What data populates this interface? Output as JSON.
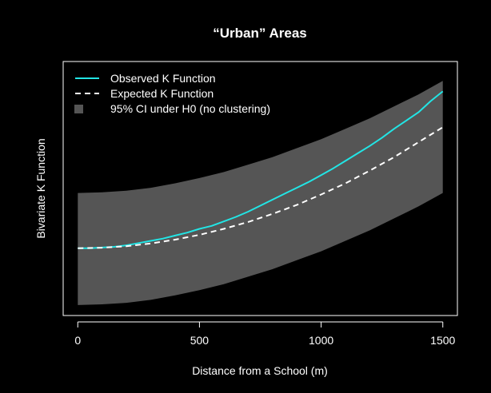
{
  "chart_data": {
    "type": "line",
    "title": "“Urban” Areas",
    "xlabel": "Distance from a School (m)",
    "ylabel": "Bivariate K Function",
    "xlim": [
      -60,
      1560
    ],
    "xticks": [
      0,
      500,
      1000,
      1500
    ],
    "ylim": [
      -0.45,
      1.25
    ],
    "show_y_ticks": false,
    "grid": false,
    "legend_position": "top-left",
    "colors": {
      "background": "#000000",
      "foreground": "#ffffff",
      "observed": "#22e5e5",
      "expected": "#ffffff",
      "ci_band": "#555555"
    },
    "ci_band": {
      "name": "95% CI under H0 (no clustering)",
      "x": [
        0,
        100,
        200,
        300,
        400,
        500,
        600,
        700,
        800,
        900,
        1000,
        1100,
        1200,
        1300,
        1400,
        1500
      ],
      "lower": [
        -0.38,
        -0.375,
        -0.365,
        -0.345,
        -0.315,
        -0.28,
        -0.24,
        -0.19,
        -0.14,
        -0.08,
        -0.02,
        0.05,
        0.12,
        0.2,
        0.28,
        0.37
      ],
      "upper": [
        0.37,
        0.375,
        0.385,
        0.405,
        0.435,
        0.47,
        0.51,
        0.56,
        0.61,
        0.67,
        0.73,
        0.8,
        0.87,
        0.95,
        1.03,
        1.12
      ]
    },
    "series": [
      {
        "name": "Observed K Function",
        "style": "solid",
        "x": [
          0,
          50,
          100,
          150,
          200,
          250,
          300,
          350,
          400,
          450,
          500,
          550,
          600,
          650,
          700,
          750,
          800,
          850,
          900,
          950,
          1000,
          1050,
          1100,
          1150,
          1200,
          1250,
          1300,
          1350,
          1400,
          1450,
          1500
        ],
        "values": [
          0,
          0,
          0.005,
          0.01,
          0.02,
          0.035,
          0.05,
          0.065,
          0.085,
          0.105,
          0.13,
          0.15,
          0.18,
          0.21,
          0.245,
          0.285,
          0.325,
          0.365,
          0.405,
          0.445,
          0.49,
          0.535,
          0.585,
          0.635,
          0.685,
          0.74,
          0.8,
          0.855,
          0.91,
          0.985,
          1.05
        ]
      },
      {
        "name": "Expected K Function",
        "style": "dashed",
        "x": [
          0,
          100,
          200,
          300,
          400,
          500,
          600,
          700,
          800,
          900,
          1000,
          1100,
          1200,
          1300,
          1400,
          1500
        ],
        "values": [
          0,
          0.004,
          0.014,
          0.032,
          0.058,
          0.09,
          0.13,
          0.176,
          0.23,
          0.29,
          0.36,
          0.435,
          0.52,
          0.61,
          0.71,
          0.81
        ]
      }
    ]
  }
}
